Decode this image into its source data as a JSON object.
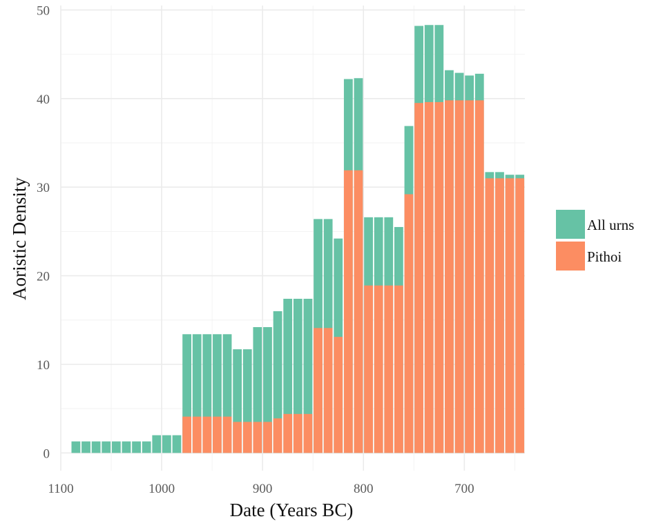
{
  "chart_data": {
    "type": "bar",
    "stacked": false,
    "xlabel": "Date (Years BC)",
    "ylabel": "Aoristic Density",
    "xlim": [
      1100,
      640
    ],
    "x_reversed": true,
    "x_ticks": [
      1100,
      1000,
      900,
      800,
      700
    ],
    "ylim": [
      -2,
      50.5
    ],
    "y_ticks": [
      0,
      10,
      20,
      30,
      40,
      50
    ],
    "grid": true,
    "legend_position": "right",
    "bin_width": 10,
    "series": [
      {
        "name": "All urns",
        "color": "#66c2a5",
        "x": [
          1085,
          1075,
          1065,
          1055,
          1045,
          1035,
          1025,
          1015,
          1005,
          995,
          985,
          975,
          965,
          955,
          945,
          935,
          925,
          915,
          905,
          895,
          885,
          875,
          865,
          855,
          845,
          835,
          825,
          815,
          805,
          795,
          785,
          775,
          765,
          755,
          745,
          735,
          725,
          715,
          705,
          695,
          685,
          675,
          665,
          655,
          645
        ],
        "values": [
          1.3,
          1.3,
          1.3,
          1.3,
          1.3,
          1.3,
          1.3,
          1.3,
          2.0,
          2.0,
          2.0,
          13.4,
          13.4,
          13.4,
          13.4,
          13.4,
          11.7,
          11.7,
          14.2,
          14.2,
          16.0,
          17.4,
          17.4,
          17.4,
          26.4,
          26.4,
          24.2,
          42.2,
          42.3,
          26.6,
          26.6,
          26.6,
          25.5,
          36.9,
          48.2,
          48.3,
          48.3,
          43.2,
          42.9,
          42.6,
          42.8,
          31.7,
          31.7,
          31.4,
          31.4
        ]
      },
      {
        "name": "Pithoi",
        "color": "#fc8d62",
        "x": [
          1085,
          1075,
          1065,
          1055,
          1045,
          1035,
          1025,
          1015,
          1005,
          995,
          985,
          975,
          965,
          955,
          945,
          935,
          925,
          915,
          905,
          895,
          885,
          875,
          865,
          855,
          845,
          835,
          825,
          815,
          805,
          795,
          785,
          775,
          765,
          755,
          745,
          735,
          725,
          715,
          705,
          695,
          685,
          675,
          665,
          655,
          645
        ],
        "values": [
          0,
          0,
          0,
          0,
          0,
          0,
          0,
          0,
          0,
          0,
          0,
          4.1,
          4.1,
          4.1,
          4.1,
          4.1,
          3.5,
          3.5,
          3.5,
          3.5,
          3.9,
          4.4,
          4.4,
          4.4,
          14.1,
          14.1,
          13.1,
          31.9,
          31.9,
          18.9,
          18.9,
          18.9,
          18.9,
          29.2,
          39.5,
          39.6,
          39.6,
          39.8,
          39.8,
          39.8,
          39.8,
          31.0,
          31.0,
          31.0,
          31.0
        ]
      }
    ]
  }
}
